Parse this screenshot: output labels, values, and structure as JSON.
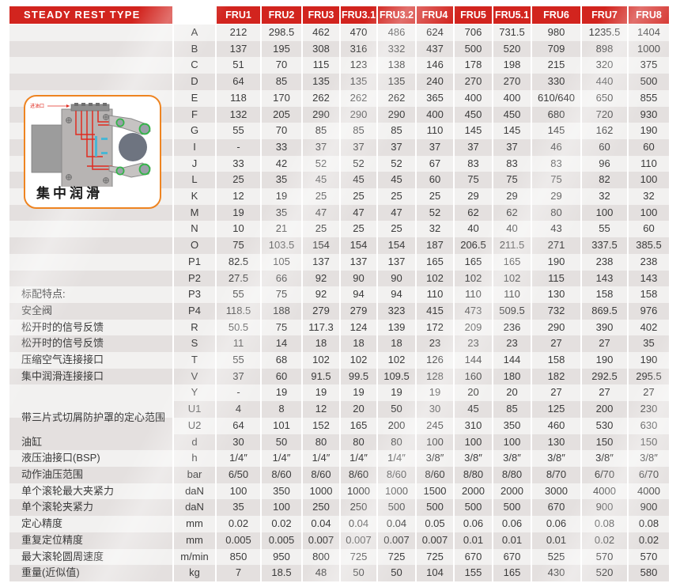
{
  "header": {
    "title": "STEADY REST TYPE",
    "columns": [
      "FRU1",
      "FRU2",
      "FRU3",
      "FRU3.1",
      "FRU3.2",
      "FRU4",
      "FRU5",
      "FRU5.1",
      "FRU6",
      "FRU7",
      "FRU8"
    ]
  },
  "diagram": {
    "caption": "集中润滑",
    "annotation": "进油口"
  },
  "colors": {
    "header_bg": "#d2241e",
    "row_light": "#f2f1f0",
    "row_dark": "#e4e0df",
    "diagram_border": "#ee8421",
    "roller_ring_green": "#35b44a",
    "hydraulic_line_red": "#e02b20",
    "text": "#3b3b3b"
  },
  "rows": [
    {
      "label": "",
      "key": "A",
      "values": [
        "212",
        "298.5",
        "462",
        "470",
        "486",
        "624",
        "706",
        "731.5",
        "980",
        "1235.5",
        "1404"
      ]
    },
    {
      "label": "",
      "key": "B",
      "values": [
        "137",
        "195",
        "308",
        "316",
        "332",
        "437",
        "500",
        "520",
        "709",
        "898",
        "1000"
      ]
    },
    {
      "label": "",
      "key": "C",
      "values": [
        "51",
        "70",
        "115",
        "123",
        "138",
        "146",
        "178",
        "198",
        "215",
        "320",
        "375"
      ]
    },
    {
      "label": "",
      "key": "D",
      "values": [
        "64",
        "85",
        "135",
        "135",
        "135",
        "240",
        "270",
        "270",
        "330",
        "440",
        "500"
      ]
    },
    {
      "label": "",
      "key": "E",
      "values": [
        "118",
        "170",
        "262",
        "262",
        "262",
        "365",
        "400",
        "400",
        "610/640",
        "650",
        "855"
      ]
    },
    {
      "label": "",
      "key": "F",
      "values": [
        "132",
        "205",
        "290",
        "290",
        "290",
        "400",
        "450",
        "450",
        "680",
        "720",
        "930"
      ]
    },
    {
      "label": "",
      "key": "G",
      "values": [
        "55",
        "70",
        "85",
        "85",
        "85",
        "110",
        "145",
        "145",
        "145",
        "162",
        "190"
      ]
    },
    {
      "label": "",
      "key": "I",
      "values": [
        "-",
        "33",
        "37",
        "37",
        "37",
        "37",
        "37",
        "37",
        "46",
        "60",
        "60"
      ]
    },
    {
      "label": "",
      "key": "J",
      "values": [
        "33",
        "42",
        "52",
        "52",
        "52",
        "67",
        "83",
        "83",
        "83",
        "96",
        "110"
      ]
    },
    {
      "label": "",
      "key": "L",
      "values": [
        "25",
        "35",
        "45",
        "45",
        "45",
        "60",
        "75",
        "75",
        "75",
        "82",
        "100"
      ]
    },
    {
      "label": "",
      "key": "K",
      "values": [
        "12",
        "19",
        "25",
        "25",
        "25",
        "25",
        "29",
        "29",
        "29",
        "32",
        "32"
      ]
    },
    {
      "label": "",
      "key": "M",
      "values": [
        "19",
        "35",
        "47",
        "47",
        "47",
        "52",
        "62",
        "62",
        "80",
        "100",
        "100"
      ]
    },
    {
      "label": "",
      "key": "N",
      "values": [
        "10",
        "21",
        "25",
        "25",
        "25",
        "32",
        "40",
        "40",
        "43",
        "55",
        "60"
      ]
    },
    {
      "label": "",
      "key": "O",
      "values": [
        "75",
        "103.5",
        "154",
        "154",
        "154",
        "187",
        "206.5",
        "211.5",
        "271",
        "337.5",
        "385.5"
      ]
    },
    {
      "label": "",
      "key": "P1",
      "values": [
        "82.5",
        "105",
        "137",
        "137",
        "137",
        "165",
        "165",
        "165",
        "190",
        "238",
        "238"
      ]
    },
    {
      "label": "",
      "key": "P2",
      "values": [
        "27.5",
        "66",
        "92",
        "90",
        "90",
        "102",
        "102",
        "102",
        "115",
        "143",
        "143"
      ]
    },
    {
      "label": "标配特点:",
      "key": "P3",
      "values": [
        "55",
        "75",
        "92",
        "94",
        "94",
        "110",
        "110",
        "110",
        "130",
        "158",
        "158"
      ]
    },
    {
      "label": "安全阀",
      "key": "P4",
      "values": [
        "118.5",
        "188",
        "279",
        "279",
        "323",
        "415",
        "473",
        "509.5",
        "732",
        "869.5",
        "976"
      ]
    },
    {
      "label": "松开时的信号反馈",
      "key": "R",
      "values": [
        "50.5",
        "75",
        "117.3",
        "124",
        "139",
        "172",
        "209",
        "236",
        "290",
        "390",
        "402"
      ]
    },
    {
      "label": "松开时的信号反馈",
      "key": "S",
      "values": [
        "11",
        "14",
        "18",
        "18",
        "18",
        "23",
        "23",
        "23",
        "27",
        "27",
        "35"
      ]
    },
    {
      "label": "压缩空气连接接口",
      "key": "T",
      "values": [
        "55",
        "68",
        "102",
        "102",
        "102",
        "126",
        "144",
        "144",
        "158",
        "190",
        "190"
      ]
    },
    {
      "label": "集中润滑连接接口",
      "key": "V",
      "values": [
        "37",
        "60",
        "91.5",
        "99.5",
        "109.5",
        "128",
        "160",
        "180",
        "182",
        "292.5",
        "295.5"
      ]
    },
    {
      "label": "",
      "key": "Y",
      "values": [
        "-",
        "19",
        "19",
        "19",
        "19",
        "19",
        "20",
        "20",
        "27",
        "27",
        "27"
      ]
    },
    {
      "label": "带三片式切屑防护罩的定心范围",
      "labelRowspan": 2,
      "key": "U1",
      "values": [
        "4",
        "8",
        "12",
        "20",
        "50",
        "30",
        "45",
        "85",
        "125",
        "200",
        "230"
      ]
    },
    {
      "noLabelCell": true,
      "key": "U2",
      "values": [
        "64",
        "101",
        "152",
        "165",
        "200",
        "245",
        "310",
        "350",
        "460",
        "530",
        "630"
      ]
    },
    {
      "label": "油缸",
      "key": "d",
      "values": [
        "30",
        "50",
        "80",
        "80",
        "80",
        "100",
        "100",
        "100",
        "130",
        "150",
        "150"
      ]
    },
    {
      "label": "液压油接口(BSP)",
      "key": "h",
      "values": [
        "1/4″",
        "1/4″",
        "1/4″",
        "1/4″",
        "1/4″",
        "3/8″",
        "3/8″",
        "3/8″",
        "3/8″",
        "3/8″",
        "3/8″"
      ]
    },
    {
      "label": "动作油压范围",
      "key": "bar",
      "values": [
        "6/50",
        "8/60",
        "8/60",
        "8/60",
        "8/60",
        "8/60",
        "8/80",
        "8/80",
        "8/70",
        "6/70",
        "6/70"
      ]
    },
    {
      "label": "单个滚轮最大夹紧力",
      "key": "daN",
      "values": [
        "100",
        "350",
        "1000",
        "1000",
        "1000",
        "1500",
        "2000",
        "2000",
        "3000",
        "4000",
        "4000"
      ]
    },
    {
      "label": "单个滚轮夹紧力",
      "key": "daN",
      "values": [
        "35",
        "100",
        "250",
        "250",
        "500",
        "500",
        "500",
        "500",
        "670",
        "900",
        "900"
      ]
    },
    {
      "label": "定心精度",
      "key": "mm",
      "values": [
        "0.02",
        "0.02",
        "0.04",
        "0.04",
        "0.04",
        "0.05",
        "0.06",
        "0.06",
        "0.06",
        "0.08",
        "0.08"
      ]
    },
    {
      "label": "重复定位精度",
      "key": "mm",
      "values": [
        "0.005",
        "0.005",
        "0.007",
        "0.007",
        "0.007",
        "0.007",
        "0.01",
        "0.01",
        "0.01",
        "0.02",
        "0.02"
      ]
    },
    {
      "label": "最大滚轮圆周速度",
      "key": "m/min",
      "values": [
        "850",
        "950",
        "800",
        "725",
        "725",
        "725",
        "670",
        "670",
        "525",
        "570",
        "570"
      ]
    },
    {
      "label": "重量(近似值)",
      "key": "kg",
      "values": [
        "7",
        "18.5",
        "48",
        "50",
        "50",
        "104",
        "155",
        "165",
        "430",
        "520",
        "580"
      ]
    }
  ]
}
